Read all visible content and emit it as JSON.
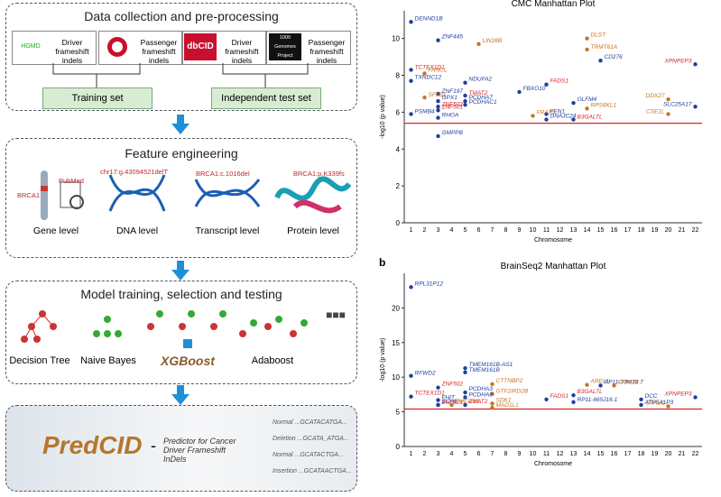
{
  "pipeline": {
    "collection": {
      "title": "Data collection and pre-processing",
      "sources": [
        {
          "logo": "HGMD",
          "label": "Driver frameshift indels"
        },
        {
          "logo": "",
          "label": "Passenger frameshift indels"
        },
        {
          "logo": "dbCID",
          "label": "Driver frameshift indels"
        },
        {
          "logo": "1000 Genomes Project",
          "label": "Passenger frameshift indels"
        }
      ],
      "sets": [
        "Training set",
        "Independent test set"
      ]
    },
    "features": {
      "title": "Feature engineering",
      "levels": [
        "Gene level",
        "DNA level",
        "Transcript level",
        "Protein level"
      ],
      "annotations": [
        "BRCA1",
        "PubMed",
        "chr17:g.43094521delT",
        "BRCA1:c.1016del",
        "BRCA1:p.K339fs"
      ]
    },
    "models": {
      "title": "Model training, selection and testing",
      "names": [
        "Decision Tree",
        "Naive Bayes",
        "XGBoost",
        "Adaboost"
      ],
      "more": "■■■"
    },
    "tool": {
      "name": "PredCID",
      "separator": "-",
      "description": "Predictor for Cancer Driver Frameshift InDels",
      "sequences": [
        "Normal ...GCATACATGA...",
        "Deletion ...GCATA_ATGA...",
        "Normal ...GCATACTGA...",
        "Insertion ...GCATAACTGA..."
      ]
    }
  },
  "chart_data": [
    {
      "type": "manhattan",
      "title": "CMC Manhattan Plot",
      "xlabel": "Chromosome",
      "ylabel": "-log10 (p value)",
      "categories": [
        "1",
        "2",
        "3",
        "4",
        "5",
        "6",
        "7",
        "8",
        "9",
        "10",
        "11",
        "12",
        "13",
        "14",
        "15",
        "16",
        "17",
        "18",
        "19",
        "20",
        "21",
        "22"
      ],
      "ylim": [
        0,
        11.5
      ],
      "yticks": [
        0,
        2,
        4,
        6,
        8,
        10
      ],
      "threshold": 5.4,
      "threshold_color": "#d62728",
      "points": [
        {
          "gene": "DENND1B",
          "chromosome": "1",
          "value": 10.9,
          "color": "#1f3f9f"
        },
        {
          "gene": "ZNF445",
          "chromosome": "3",
          "value": 9.9,
          "color": "#1f3f9f"
        },
        {
          "gene": "LIN28B",
          "chromosome": "6",
          "value": 9.7,
          "color": "#c8741e"
        },
        {
          "gene": "DLST",
          "chromosome": "14",
          "value": 10.0,
          "color": "#c8741e"
        },
        {
          "gene": "TRMT61A",
          "chromosome": "14",
          "value": 9.4,
          "color": "#c8741e"
        },
        {
          "gene": "CD276",
          "chromosome": "15",
          "value": 8.8,
          "color": "#1f3f9f"
        },
        {
          "gene": "XPNPEP3",
          "chromosome": "22",
          "value": 8.6,
          "color": "#d62728"
        },
        {
          "gene": "TCTEX1D1",
          "chromosome": "1",
          "value": 8.3,
          "color": "#d62728"
        },
        {
          "gene": "FANCL",
          "chromosome": "2",
          "value": 8.1,
          "color": "#c8741e"
        },
        {
          "gene": "TXNDC12",
          "chromosome": "1",
          "value": 7.7,
          "color": "#1f3f9f"
        },
        {
          "gene": "NDUFA2",
          "chromosome": "5",
          "value": 7.6,
          "color": "#1f3f9f"
        },
        {
          "gene": "FADS1",
          "chromosome": "11",
          "value": 7.5,
          "color": "#d62728"
        },
        {
          "gene": "FBXO10",
          "chromosome": "9",
          "value": 7.1,
          "color": "#1f3f9f"
        },
        {
          "gene": "ZNF197",
          "chromosome": "3",
          "value": 7.0,
          "color": "#1f3f9f"
        },
        {
          "gene": "TMAT2",
          "chromosome": "5",
          "value": 6.9,
          "color": "#d62728"
        },
        {
          "gene": "SF3B1",
          "chromosome": "2",
          "value": 6.8,
          "color": "#c8741e"
        },
        {
          "gene": "DDX27",
          "chromosome": "20",
          "value": 6.7,
          "color": "#c8741e"
        },
        {
          "gene": "GPX1",
          "chromosome": "3",
          "value": 6.6,
          "color": "#1f3f9f"
        },
        {
          "gene": "PCDHA7",
          "chromosome": "5",
          "value": 6.6,
          "color": "#1f3f9f"
        },
        {
          "gene": "OLFM4",
          "chromosome": "13",
          "value": 6.5,
          "color": "#1f3f9f"
        },
        {
          "gene": "PCDHAC1",
          "chromosome": "5",
          "value": 6.4,
          "color": "#1f3f9f"
        },
        {
          "gene": "ZNF502",
          "chromosome": "3",
          "value": 6.3,
          "color": "#d62728"
        },
        {
          "gene": "ZNF501",
          "chromosome": "3",
          "value": 6.1,
          "color": "#d62728"
        },
        {
          "gene": "SLC25A17",
          "chromosome": "22",
          "value": 6.3,
          "color": "#1f3f9f"
        },
        {
          "gene": "RPS6KL1",
          "chromosome": "14",
          "value": 6.2,
          "color": "#c8741e"
        },
        {
          "gene": "PSMB4",
          "chromosome": "1",
          "value": 5.9,
          "color": "#1f3f9f"
        },
        {
          "gene": "CSE1L",
          "chromosome": "20",
          "value": 5.9,
          "color": "#c8741e"
        },
        {
          "gene": "FEN1",
          "chromosome": "11",
          "value": 5.9,
          "color": "#1f3f9f"
        },
        {
          "gene": "FRAT2",
          "chromosome": "10",
          "value": 5.8,
          "color": "#c8741e"
        },
        {
          "gene": "RHOA",
          "chromosome": "3",
          "value": 5.7,
          "color": "#1f3f9f"
        },
        {
          "gene": "DNAJC24",
          "chromosome": "11",
          "value": 5.6,
          "color": "#1f3f9f"
        },
        {
          "gene": "B3GALTL",
          "chromosome": "13",
          "value": 5.6,
          "color": "#d62728"
        },
        {
          "gene": "GMPPB",
          "chromosome": "3",
          "value": 4.7,
          "color": "#1f3f9f"
        }
      ]
    },
    {
      "type": "manhattan",
      "panel": "b",
      "title": "BrainSeq2 Manhattan Plot",
      "xlabel": "Chromosome",
      "ylabel": "-log10 (p value)",
      "categories": [
        "1",
        "2",
        "3",
        "4",
        "5",
        "6",
        "7",
        "8",
        "9",
        "10",
        "11",
        "12",
        "13",
        "14",
        "15",
        "16",
        "17",
        "18",
        "19",
        "20",
        "21",
        "22"
      ],
      "ylim": [
        0,
        25
      ],
      "yticks": [
        0,
        5,
        10,
        15,
        20
      ],
      "threshold": 5.4,
      "threshold_color": "#d62728",
      "points": [
        {
          "gene": "RPL31P12",
          "chromosome": "1",
          "value": 23,
          "color": "#1f3f9f"
        },
        {
          "gene": "TMEM161B-AS1",
          "chromosome": "5",
          "value": 11.3,
          "color": "#1f3f9f"
        },
        {
          "gene": "TMEM161B",
          "chromosome": "5",
          "value": 10.7,
          "color": "#1f3f9f"
        },
        {
          "gene": "RFWD2",
          "chromosome": "1",
          "value": 10.2,
          "color": "#1f3f9f"
        },
        {
          "gene": "CTTNBP2",
          "chromosome": "7",
          "value": 9.0,
          "color": "#c8741e"
        },
        {
          "gene": "AREL1",
          "chromosome": "14",
          "value": 8.9,
          "color": "#c8741e"
        },
        {
          "gene": "RP11-73M18.7",
          "chromosome": "15",
          "value": 8.8,
          "color": "#1f3f9f"
        },
        {
          "gene": "CPPED",
          "chromosome": "16",
          "value": 8.8,
          "color": "#c8741e"
        },
        {
          "gene": "ZNF502",
          "chromosome": "3",
          "value": 8.5,
          "color": "#d62728"
        },
        {
          "gene": "PCDHA3",
          "chromosome": "5",
          "value": 7.8,
          "color": "#1f3f9f"
        },
        {
          "gene": "GTF2IRD2B",
          "chromosome": "7",
          "value": 7.6,
          "color": "#c8741e"
        },
        {
          "gene": "B3GALTL",
          "chromosome": "13",
          "value": 7.4,
          "color": "#d62728"
        },
        {
          "gene": "TCTEX1D1",
          "chromosome": "1",
          "value": 7.2,
          "color": "#d62728"
        },
        {
          "gene": "PCDHA8",
          "chromosome": "5",
          "value": 7.1,
          "color": "#1f3f9f"
        },
        {
          "gene": "XPNPEP3",
          "chromosome": "22",
          "value": 7.1,
          "color": "#d62728"
        },
        {
          "gene": "FHIT",
          "chromosome": "3",
          "value": 6.7,
          "color": "#1f3f9f"
        },
        {
          "gene": "FADS1",
          "chromosome": "11",
          "value": 6.8,
          "color": "#d62728"
        },
        {
          "gene": "DCC",
          "chromosome": "18",
          "value": 6.8,
          "color": "#1f3f9f"
        },
        {
          "gene": "RP11-665J16.1",
          "chromosome": "13",
          "value": 6.4,
          "color": "#1f3f9f"
        },
        {
          "gene": "SDK1",
          "chromosome": "7",
          "value": 6.2,
          "color": "#c8741e"
        },
        {
          "gene": "BCHE",
          "chromosome": "3",
          "value": 6.0,
          "color": "#1f3f9f"
        },
        {
          "gene": "TMEM33",
          "chromosome": "4",
          "value": 6.0,
          "color": "#c8741e"
        },
        {
          "gene": "ZMAT2",
          "chromosome": "5",
          "value": 6.0,
          "color": "#d62728"
        },
        {
          "gene": "ZNF501",
          "chromosome": "3",
          "value": 6.0,
          "color": "#d62728"
        },
        {
          "gene": "ATP5A1P3",
          "chromosome": "18",
          "value": 6.0,
          "color": "#1f3f9f"
        },
        {
          "gene": "STAU1",
          "chromosome": "20",
          "value": 5.8,
          "color": "#c8741e"
        },
        {
          "gene": "MAD1L1",
          "chromosome": "7",
          "value": 5.6,
          "color": "#c8741e"
        }
      ]
    }
  ]
}
